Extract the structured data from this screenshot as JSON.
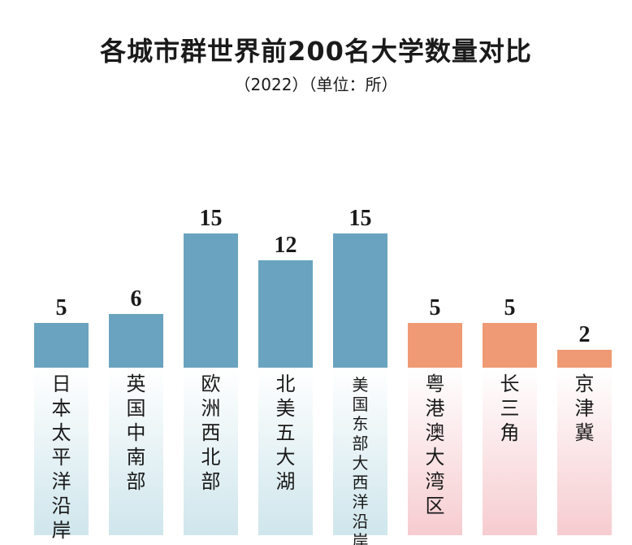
{
  "chart_title": "各城市群世界前200名大学数量对比",
  "chart_subtitle": "（2022）（单位：所）",
  "colors": {
    "blue_bar": "#6aa3bf",
    "orange_bar": "#ef9a74",
    "blue_panel_top": "#ffffff",
    "blue_panel_bottom": "#cfe6ec",
    "orange_panel_top": "#ffffff",
    "orange_panel_bottom": "#f6ccd0",
    "text": "#1a1a1a"
  },
  "chart_data": {
    "type": "bar",
    "title": "各城市群世界前200名大学数量对比",
    "subtitle": "（2022）（单位：所）",
    "categories": [
      "日本太平洋沿岸",
      "英国中南部",
      "欧洲西北部",
      "北美五大湖",
      "美国东部大西洋沿岸",
      "粤港澳大湾区",
      "长三角",
      "京津冀"
    ],
    "values": [
      5,
      6,
      15,
      12,
      15,
      5,
      5,
      2
    ],
    "groups": [
      "blue",
      "blue",
      "blue",
      "blue",
      "blue",
      "orange",
      "orange",
      "orange"
    ],
    "ylim": [
      0,
      15
    ],
    "grid": false,
    "legend": "none",
    "xlabel": "",
    "ylabel": ""
  }
}
